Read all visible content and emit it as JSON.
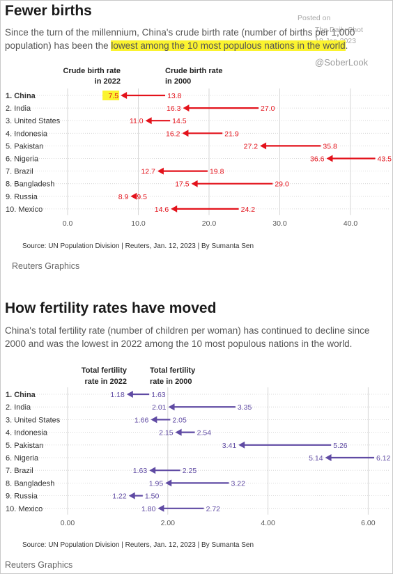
{
  "watermark": {
    "posted_label": "Posted on",
    "site": "The Daily Shot",
    "date": "18-Jan-2023",
    "handle": "@SoberLook"
  },
  "chart1": {
    "title": "Fewer births",
    "subtitle_before": "Since the turn of the millennium, China's crude birth rate (number of births per 1,000 population) has been the ",
    "subtitle_highlight": "lowest among the 10 most populous nations in the world",
    "subtitle_after": ".",
    "source": "Source: UN Population Division | Reuters, Jan. 12, 2023 | By Sumanta Sen",
    "brand": "Reuters Graphics"
  },
  "chart2": {
    "title": "How fertility rates have moved",
    "subtitle": "China's total fertility rate (number of children per woman) has continued to decline since 2000 and was the lowest in 2022 among the 10 most populous nations in the world.",
    "source": "Source: UN Population Division | Reuters, Jan. 12, 2023 | By Sumanta Sen",
    "brand": "Reuters Graphics"
  },
  "chart_data": [
    {
      "type": "dumbbell-arrow",
      "categories": [
        "1. China",
        "2. India",
        "3. United States",
        "4. Indonesia",
        "5. Pakistan",
        "6. Nigeria",
        "7. Brazil",
        "8. Bangladesh",
        "9. Russia",
        "10. Mexico"
      ],
      "series": [
        {
          "name": "Crude birth rate in 2022",
          "values": [
            7.5,
            16.3,
            11.0,
            16.2,
            27.2,
            36.6,
            12.7,
            17.5,
            8.9,
            14.6
          ]
        },
        {
          "name": "Crude birth rate in 2000",
          "values": [
            13.8,
            27.0,
            14.5,
            21.9,
            35.8,
            43.5,
            19.8,
            29.0,
            9.5,
            24.2
          ]
        }
      ],
      "labels": {
        "2022": [
          "7.5",
          "16.3",
          "11.0",
          "16.2",
          "27.2",
          "36.6",
          "12.7",
          "17.5",
          "8.9",
          "14.6"
        ],
        "2000": [
          "13.8",
          "27.0",
          "14.5",
          "21.9",
          "35.8",
          "43.5",
          "19.8",
          "29.0",
          "9.5",
          "24.2"
        ]
      },
      "header_2022": [
        "Crude birth rate",
        "in 2022"
      ],
      "header_2000": [
        "Crude birth rate",
        "in 2000"
      ],
      "x_ticks": [
        0,
        10,
        20,
        30,
        40
      ],
      "x_tick_labels": [
        "0.0",
        "10.0",
        "20.0",
        "30.0",
        "40.0"
      ],
      "xlim": [
        0,
        45
      ],
      "color": "#e3121b",
      "highlight_color": "#fbf32f",
      "grid": true
    },
    {
      "type": "dumbbell-arrow",
      "categories": [
        "1. China",
        "2. India",
        "3. United States",
        "4. Indonesia",
        "5. Pakistan",
        "6. Nigeria",
        "7. Brazil",
        "8. Bangladesh",
        "9. Russia",
        "10. Mexico"
      ],
      "series": [
        {
          "name": "Total fertility rate in 2022",
          "values": [
            1.18,
            2.01,
            1.66,
            2.15,
            3.41,
            5.14,
            1.63,
            1.95,
            1.22,
            1.8
          ]
        },
        {
          "name": "Total fertility rate in 2000",
          "values": [
            1.63,
            3.35,
            2.05,
            2.54,
            5.26,
            6.12,
            2.25,
            3.22,
            1.5,
            2.72
          ]
        }
      ],
      "labels": {
        "2022": [
          "1.18",
          "2.01",
          "1.66",
          "2.15",
          "3.41",
          "5.14",
          "1.63",
          "1.95",
          "1.22",
          "1.80"
        ],
        "2000": [
          "1.63",
          "3.35",
          "2.05",
          "2.54",
          "5.26",
          "6.12",
          "2.25",
          "3.22",
          "1.50",
          "2.72"
        ]
      },
      "header_2022": [
        "Total fertility",
        "rate in 2022"
      ],
      "header_2000": [
        "Total fertility",
        "rate in 2000"
      ],
      "x_ticks": [
        0,
        2,
        4,
        6
      ],
      "x_tick_labels": [
        "0.00",
        "2.00",
        "4.00",
        "6.00"
      ],
      "xlim": [
        0,
        6.4
      ],
      "color": "#5f4aa3",
      "grid": true
    }
  ]
}
